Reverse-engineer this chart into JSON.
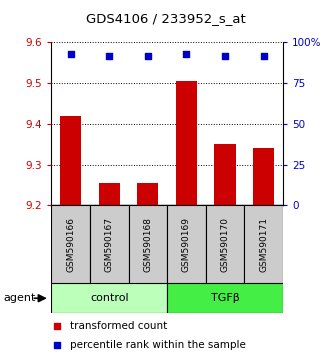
{
  "title": "GDS4106 / 233952_s_at",
  "categories": [
    "GSM590166",
    "GSM590167",
    "GSM590168",
    "GSM590169",
    "GSM590170",
    "GSM590171"
  ],
  "bar_values": [
    9.42,
    9.255,
    9.255,
    9.505,
    9.35,
    9.34
  ],
  "bar_bottom": 9.2,
  "percentile_values": [
    93,
    92,
    92,
    93,
    92,
    92
  ],
  "ylim_left": [
    9.2,
    9.6
  ],
  "ylim_right": [
    0,
    100
  ],
  "yticks_left": [
    9.2,
    9.3,
    9.4,
    9.5,
    9.6
  ],
  "yticks_right": [
    0,
    25,
    50,
    75,
    100
  ],
  "ytick_labels_right": [
    "0",
    "25",
    "50",
    "75",
    "100%"
  ],
  "bar_color": "#cc0000",
  "dot_color": "#0000cc",
  "group1_label": "control",
  "group2_label": "TGFβ",
  "group1_color": "#bbffbb",
  "group2_color": "#44ee44",
  "group_box_color": "#cccccc",
  "legend_bar_label": "transformed count",
  "legend_dot_label": "percentile rank within the sample",
  "agent_label": "agent",
  "background_color": "#ffffff"
}
